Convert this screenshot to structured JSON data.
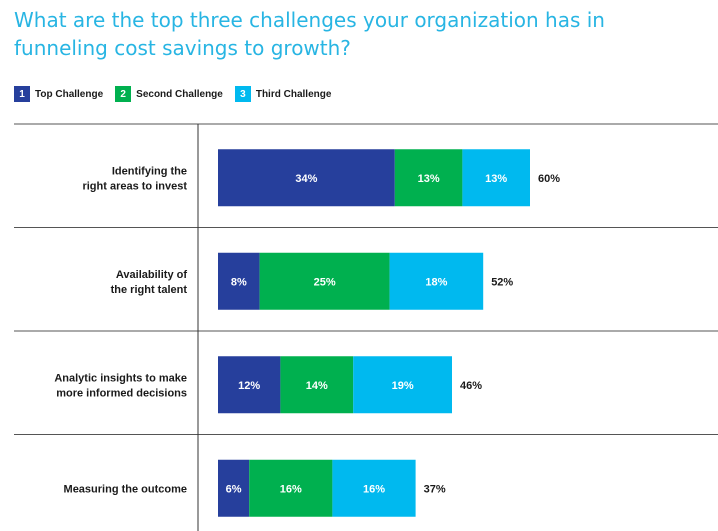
{
  "chart_data": {
    "type": "bar",
    "orientation": "horizontal",
    "stacked": true,
    "title": "What are the top three challenges your organization has in funneling cost savings to growth?",
    "legend_position": "top-left",
    "grid": false,
    "xlim": [
      0,
      60
    ],
    "categories": [
      [
        "Identifying the",
        "right areas to invest"
      ],
      [
        "Availability of",
        "the right talent"
      ],
      [
        "Analytic insights to make",
        "more informed decisions"
      ],
      [
        "Measuring the outcome"
      ]
    ],
    "series": [
      {
        "name": "Top Challenge",
        "number": "1",
        "color": "#263f9c",
        "values": [
          34,
          8,
          12,
          6
        ],
        "labels": [
          "34%",
          "8%",
          "12%",
          "6%"
        ]
      },
      {
        "name": "Second Challenge",
        "number": "2",
        "color": "#00b04f",
        "values": [
          13,
          25,
          14,
          16
        ],
        "labels": [
          "13%",
          "25%",
          "14%",
          "16%"
        ]
      },
      {
        "name": "Third Challenge",
        "number": "3",
        "color": "#00b9ef",
        "values": [
          13,
          18,
          19,
          16
        ],
        "labels": [
          "13%",
          "18%",
          "19%",
          "16%"
        ]
      }
    ],
    "totals": [
      60,
      52,
      46,
      37
    ],
    "total_labels": [
      "60%",
      "52%",
      "46%",
      "37%"
    ]
  }
}
